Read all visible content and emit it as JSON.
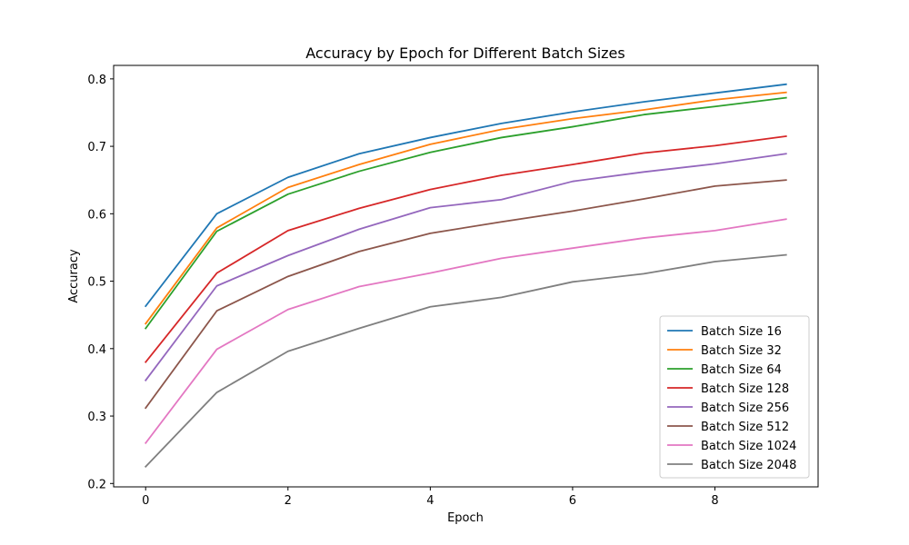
{
  "chart_data": {
    "type": "line",
    "title": "Accuracy by Epoch for Different Batch Sizes",
    "xlabel": "Epoch",
    "ylabel": "Accuracy",
    "xlim": [
      -0.45,
      9.45
    ],
    "ylim": [
      0.195,
      0.82
    ],
    "xticks": [
      0,
      2,
      4,
      6,
      8
    ],
    "yticks": [
      0.2,
      0.3,
      0.4,
      0.5,
      0.6,
      0.7,
      0.8
    ],
    "grid": false,
    "legend_position": "lower-right",
    "x": [
      0,
      1,
      2,
      3,
      4,
      5,
      6,
      7,
      8,
      9
    ],
    "series": [
      {
        "name": "Batch Size 16",
        "color": "#1f77b4",
        "values": [
          0.463,
          0.6,
          0.654,
          0.689,
          0.713,
          0.734,
          0.751,
          0.766,
          0.779,
          0.792
        ]
      },
      {
        "name": "Batch Size 32",
        "color": "#ff7f0e",
        "values": [
          0.437,
          0.579,
          0.639,
          0.673,
          0.703,
          0.725,
          0.741,
          0.754,
          0.769,
          0.78
        ]
      },
      {
        "name": "Batch Size 64",
        "color": "#2ca02c",
        "values": [
          0.43,
          0.574,
          0.629,
          0.663,
          0.691,
          0.713,
          0.729,
          0.747,
          0.759,
          0.772
        ]
      },
      {
        "name": "Batch Size 128",
        "color": "#d62728",
        "values": [
          0.38,
          0.512,
          0.575,
          0.608,
          0.636,
          0.657,
          0.673,
          0.69,
          0.701,
          0.715
        ]
      },
      {
        "name": "Batch Size 256",
        "color": "#9467bd",
        "values": [
          0.353,
          0.493,
          0.538,
          0.577,
          0.609,
          0.621,
          0.648,
          0.662,
          0.674,
          0.689
        ]
      },
      {
        "name": "Batch Size 512",
        "color": "#8c564b",
        "values": [
          0.312,
          0.456,
          0.507,
          0.544,
          0.571,
          0.588,
          0.604,
          0.622,
          0.641,
          0.65
        ]
      },
      {
        "name": "Batch Size 1024",
        "color": "#e377c2",
        "values": [
          0.26,
          0.399,
          0.458,
          0.492,
          0.512,
          0.534,
          0.549,
          0.564,
          0.575,
          0.592
        ]
      },
      {
        "name": "Batch Size 2048",
        "color": "#7f7f7f",
        "values": [
          0.225,
          0.335,
          0.396,
          0.43,
          0.462,
          0.476,
          0.499,
          0.511,
          0.529,
          0.539
        ]
      }
    ]
  }
}
